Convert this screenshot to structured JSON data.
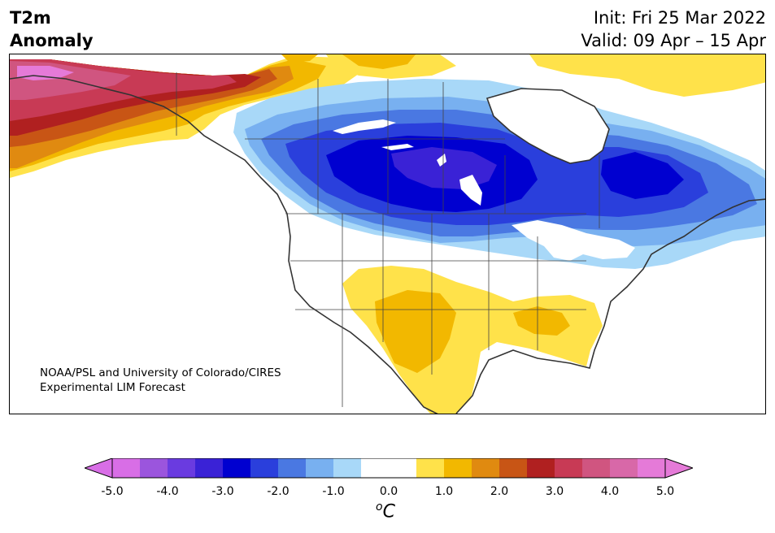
{
  "title": {
    "line1": "T2m",
    "line2": "Anomaly"
  },
  "init": "Init: Fri 25 Mar 2022",
  "valid": "Valid: 09 Apr – 15 Apr",
  "credit": {
    "line1": "NOAA/PSL and University of Colorado/CIRES",
    "line2": "Experimental LIM Forecast"
  },
  "colorbar": {
    "unit_sup": "o",
    "unit": "C",
    "min": -5.0,
    "max": 5.0,
    "ticks": [
      "-5.0",
      "-4.0",
      "-3.0",
      "-2.0",
      "-1.0",
      "0.0",
      "1.0",
      "2.0",
      "3.0",
      "4.0",
      "5.0"
    ],
    "colors": [
      "#d86ee6",
      "#9b55dd",
      "#6a3be0",
      "#3a22d6",
      "#0000d0",
      "#2a3fdc",
      "#4a78e2",
      "#78b0f0",
      "#a8d8f8",
      "#ffffff",
      "#ffffff",
      "#ffe24a",
      "#f2b800",
      "#e08a10",
      "#c85515",
      "#b02020",
      "#c83a55",
      "#d05580",
      "#d868a8",
      "#e57ad8"
    ],
    "under_color": "#d86ee6",
    "over_color": "#e57ad8"
  }
}
